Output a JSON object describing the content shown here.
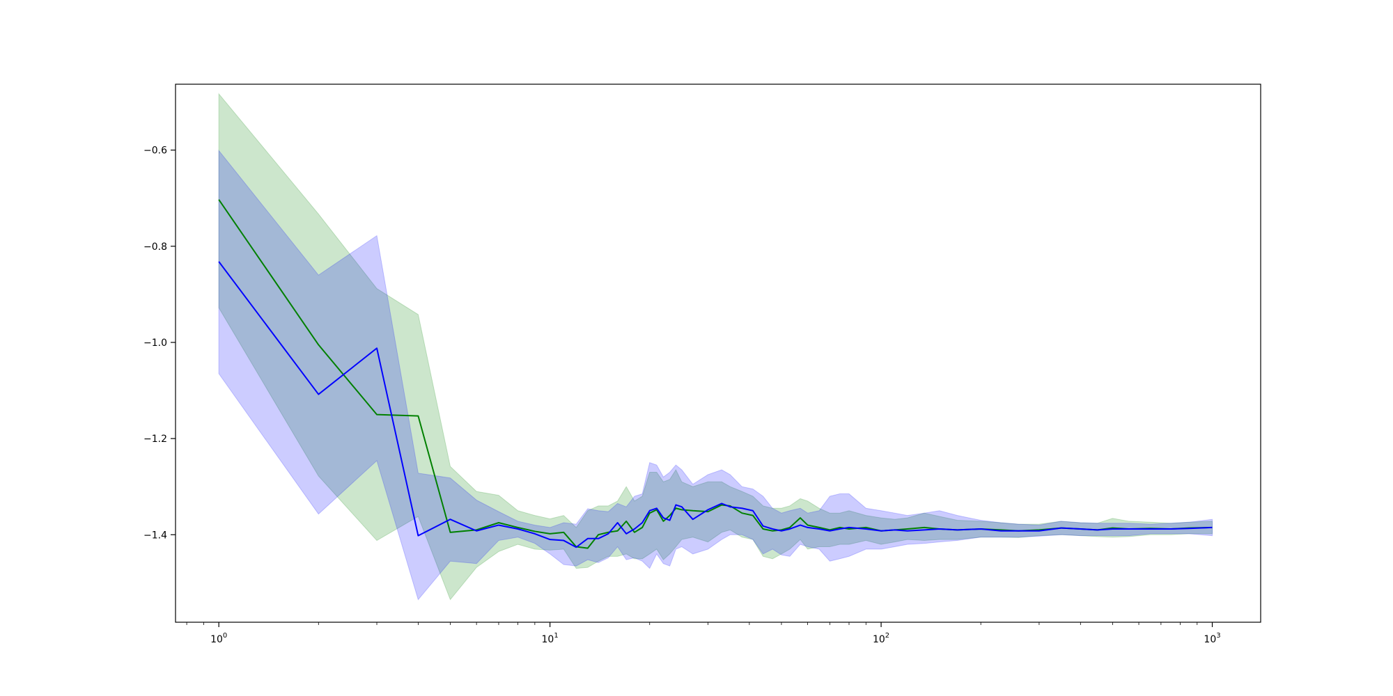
{
  "chart_data": {
    "type": "line",
    "title": "",
    "xlabel": "",
    "ylabel": "",
    "xscale": "log",
    "xlim": [
      0.74,
      1400
    ],
    "ylim": [
      -1.582,
      -0.463
    ],
    "grid": false,
    "legend": "none",
    "x_tick_values": [
      1,
      10,
      100,
      1000
    ],
    "x_tick_labels": [
      {
        "base": "10",
        "exp": "0"
      },
      {
        "base": "10",
        "exp": "1"
      },
      {
        "base": "10",
        "exp": "2"
      },
      {
        "base": "10",
        "exp": "3"
      }
    ],
    "y_tick_values": [
      -1.4,
      -1.2,
      -1.0,
      -0.8,
      -0.6
    ],
    "y_tick_labels": [
      "−1.4",
      "−1.2",
      "−1.0",
      "−0.8",
      "−0.6"
    ],
    "series": [
      {
        "color": "#008000",
        "band_color": "#008000",
        "band_opacity": 0.2,
        "x": [
          1,
          2,
          3,
          4,
          5,
          6,
          7,
          8,
          9,
          10,
          11,
          12,
          13,
          14,
          15,
          16,
          17,
          18,
          19,
          20,
          21,
          22,
          23,
          24,
          25,
          27,
          30,
          33,
          35,
          38,
          41,
          44,
          47,
          50,
          53,
          57,
          60,
          65,
          70,
          75,
          80,
          90,
          100,
          110,
          120,
          135,
          150,
          170,
          200,
          230,
          260,
          300,
          350,
          400,
          450,
          500,
          560,
          650,
          750,
          850,
          1000
        ],
        "y": [
          -0.703,
          -1.005,
          -1.15,
          -1.153,
          -1.395,
          -1.39,
          -1.375,
          -1.385,
          -1.393,
          -1.398,
          -1.395,
          -1.425,
          -1.428,
          -1.4,
          -1.395,
          -1.392,
          -1.372,
          -1.395,
          -1.385,
          -1.355,
          -1.348,
          -1.372,
          -1.36,
          -1.345,
          -1.348,
          -1.35,
          -1.352,
          -1.338,
          -1.34,
          -1.355,
          -1.36,
          -1.388,
          -1.392,
          -1.39,
          -1.385,
          -1.365,
          -1.38,
          -1.385,
          -1.39,
          -1.385,
          -1.388,
          -1.385,
          -1.392,
          -1.39,
          -1.388,
          -1.385,
          -1.388,
          -1.39,
          -1.388,
          -1.39,
          -1.392,
          -1.39,
          -1.386,
          -1.388,
          -1.39,
          -1.386,
          -1.388,
          -1.387,
          -1.388,
          -1.386,
          -1.385
        ],
        "upper": [
          -0.483,
          -0.733,
          -0.888,
          -0.942,
          -1.258,
          -1.31,
          -1.318,
          -1.35,
          -1.36,
          -1.367,
          -1.36,
          -1.385,
          -1.35,
          -1.34,
          -1.34,
          -1.33,
          -1.3,
          -1.33,
          -1.32,
          -1.27,
          -1.27,
          -1.29,
          -1.285,
          -1.265,
          -1.29,
          -1.3,
          -1.29,
          -1.29,
          -1.3,
          -1.31,
          -1.32,
          -1.34,
          -1.345,
          -1.345,
          -1.34,
          -1.325,
          -1.33,
          -1.345,
          -1.355,
          -1.355,
          -1.35,
          -1.36,
          -1.365,
          -1.368,
          -1.365,
          -1.355,
          -1.362,
          -1.37,
          -1.372,
          -1.375,
          -1.378,
          -1.378,
          -1.372,
          -1.375,
          -1.376,
          -1.366,
          -1.372,
          -1.374,
          -1.376,
          -1.374,
          -1.372
        ],
        "lower": [
          -0.928,
          -1.278,
          -1.412,
          -1.362,
          -1.535,
          -1.468,
          -1.435,
          -1.42,
          -1.43,
          -1.432,
          -1.43,
          -1.47,
          -1.468,
          -1.455,
          -1.445,
          -1.445,
          -1.44,
          -1.45,
          -1.45,
          -1.44,
          -1.43,
          -1.452,
          -1.44,
          -1.425,
          -1.41,
          -1.405,
          -1.415,
          -1.395,
          -1.39,
          -1.405,
          -1.41,
          -1.445,
          -1.45,
          -1.44,
          -1.43,
          -1.41,
          -1.43,
          -1.425,
          -1.425,
          -1.42,
          -1.42,
          -1.412,
          -1.42,
          -1.415,
          -1.41,
          -1.412,
          -1.41,
          -1.41,
          -1.405,
          -1.405,
          -1.406,
          -1.402,
          -1.4,
          -1.402,
          -1.404,
          -1.405,
          -1.404,
          -1.4,
          -1.4,
          -1.398,
          -1.398
        ]
      },
      {
        "color": "#0000ff",
        "band_color": "#0000ff",
        "band_opacity": 0.2,
        "x": [
          1,
          2,
          3,
          4,
          5,
          6,
          7,
          8,
          9,
          10,
          11,
          12,
          13,
          14,
          15,
          16,
          17,
          18,
          19,
          20,
          21,
          22,
          23,
          24,
          25,
          27,
          30,
          33,
          35,
          38,
          41,
          44,
          47,
          50,
          53,
          57,
          60,
          65,
          70,
          75,
          80,
          90,
          100,
          110,
          120,
          135,
          150,
          170,
          200,
          230,
          260,
          300,
          350,
          400,
          450,
          500,
          560,
          650,
          750,
          850,
          1000
        ],
        "y": [
          -0.832,
          -1.108,
          -1.012,
          -1.402,
          -1.368,
          -1.392,
          -1.38,
          -1.388,
          -1.398,
          -1.41,
          -1.412,
          -1.426,
          -1.408,
          -1.408,
          -1.398,
          -1.375,
          -1.398,
          -1.388,
          -1.375,
          -1.35,
          -1.345,
          -1.365,
          -1.37,
          -1.338,
          -1.342,
          -1.368,
          -1.348,
          -1.335,
          -1.342,
          -1.345,
          -1.35,
          -1.382,
          -1.388,
          -1.392,
          -1.388,
          -1.38,
          -1.385,
          -1.388,
          -1.392,
          -1.388,
          -1.385,
          -1.388,
          -1.392,
          -1.39,
          -1.392,
          -1.39,
          -1.388,
          -1.39,
          -1.388,
          -1.392,
          -1.392,
          -1.392,
          -1.386,
          -1.388,
          -1.39,
          -1.388,
          -1.388,
          -1.388,
          -1.388,
          -1.387,
          -1.385
        ],
        "upper": [
          -0.601,
          -0.86,
          -0.778,
          -1.272,
          -1.282,
          -1.328,
          -1.352,
          -1.372,
          -1.38,
          -1.385,
          -1.375,
          -1.378,
          -1.346,
          -1.35,
          -1.352,
          -1.335,
          -1.342,
          -1.32,
          -1.315,
          -1.25,
          -1.255,
          -1.28,
          -1.27,
          -1.255,
          -1.265,
          -1.295,
          -1.275,
          -1.265,
          -1.275,
          -1.3,
          -1.305,
          -1.32,
          -1.345,
          -1.355,
          -1.35,
          -1.345,
          -1.355,
          -1.35,
          -1.32,
          -1.315,
          -1.315,
          -1.345,
          -1.35,
          -1.355,
          -1.36,
          -1.355,
          -1.35,
          -1.36,
          -1.37,
          -1.375,
          -1.378,
          -1.38,
          -1.372,
          -1.375,
          -1.376,
          -1.376,
          -1.376,
          -1.378,
          -1.376,
          -1.374,
          -1.368
        ],
        "lower": [
          -1.065,
          -1.357,
          -1.246,
          -1.535,
          -1.455,
          -1.46,
          -1.412,
          -1.405,
          -1.418,
          -1.44,
          -1.462,
          -1.465,
          -1.452,
          -1.458,
          -1.448,
          -1.425,
          -1.452,
          -1.448,
          -1.455,
          -1.47,
          -1.44,
          -1.46,
          -1.465,
          -1.43,
          -1.425,
          -1.44,
          -1.43,
          -1.41,
          -1.4,
          -1.4,
          -1.41,
          -1.44,
          -1.43,
          -1.442,
          -1.445,
          -1.42,
          -1.425,
          -1.43,
          -1.455,
          -1.45,
          -1.445,
          -1.43,
          -1.43,
          -1.425,
          -1.42,
          -1.418,
          -1.415,
          -1.412,
          -1.405,
          -1.405,
          -1.405,
          -1.403,
          -1.4,
          -1.402,
          -1.402,
          -1.402,
          -1.402,
          -1.398,
          -1.398,
          -1.398,
          -1.402
        ]
      }
    ]
  }
}
